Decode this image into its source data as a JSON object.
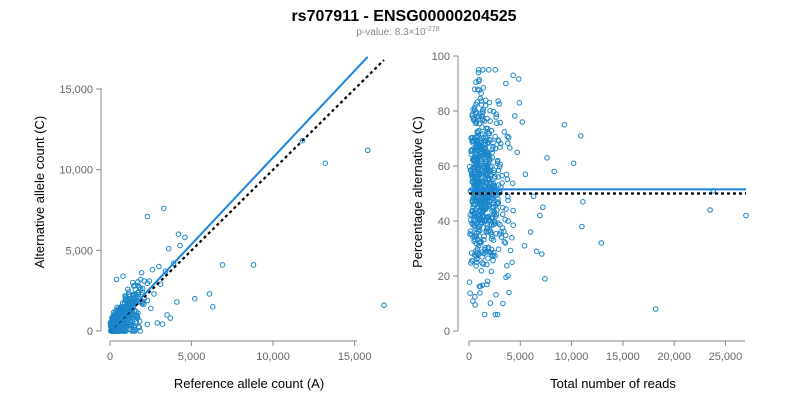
{
  "header": {
    "title": "rs707911 - ENSG00000204525",
    "pvalue_label": "p-value: 8.3",
    "pvalue_times": "×10",
    "pvalue_exp": "-278"
  },
  "colors": {
    "points": "#1b86c9",
    "fit_line": "#1a85e0",
    "reference_line": "#000000"
  },
  "chart_data": [
    {
      "type": "scatter",
      "id": "left",
      "title": "",
      "xlabel": "Reference allele count (A)",
      "ylabel": "Alternative allele count (C)",
      "xlim": [
        0,
        16800
      ],
      "ylim": [
        0,
        16800
      ],
      "xticks": [
        0,
        5000,
        10000,
        15000
      ],
      "xtick_labels": [
        "0",
        "5,000",
        "10,000",
        "15,000"
      ],
      "yticks": [
        0,
        5000,
        10000,
        15000
      ],
      "ytick_labels": [
        "0",
        "5,000",
        "10,000",
        "15,000"
      ],
      "grid": false,
      "points": [
        [
          2300,
          7100
        ],
        [
          3300,
          7600
        ],
        [
          1400,
          3000
        ],
        [
          1800,
          2700
        ],
        [
          2600,
          3800
        ],
        [
          3000,
          4000
        ],
        [
          3600,
          5100
        ],
        [
          3900,
          4200
        ],
        [
          4200,
          6000
        ],
        [
          4300,
          5300
        ],
        [
          4600,
          5800
        ],
        [
          6100,
          2300
        ],
        [
          6300,
          1500
        ],
        [
          6900,
          4100
        ],
        [
          8800,
          4100
        ],
        [
          11800,
          11800
        ],
        [
          13200,
          10400
        ],
        [
          15800,
          11200
        ],
        [
          16800,
          1600
        ],
        [
          3500,
          1000
        ],
        [
          2900,
          500
        ],
        [
          2000,
          2400
        ],
        [
          1600,
          1200
        ],
        [
          2300,
          1900
        ],
        [
          2100,
          3100
        ],
        [
          3100,
          2900
        ],
        [
          2500,
          1400
        ],
        [
          1100,
          2000
        ],
        [
          800,
          3400
        ],
        [
          400,
          3200
        ],
        [
          3400,
          3700
        ],
        [
          5200,
          2000
        ],
        [
          4100,
          1800
        ],
        [
          3700,
          800
        ],
        [
          2700,
          2300
        ]
      ],
      "fit_line": [
        [
          0,
          0
        ],
        [
          15800,
          17000
        ]
      ],
      "reference_line": [
        [
          0,
          0
        ],
        [
          16800,
          16800
        ]
      ]
    },
    {
      "type": "scatter",
      "id": "right",
      "title": "",
      "xlabel": "Total number of reads",
      "ylabel": "Percentage alternative (C)",
      "xlim": [
        0,
        27000
      ],
      "ylim": [
        0,
        100
      ],
      "xticks": [
        0,
        5000,
        10000,
        15000,
        20000,
        25000
      ],
      "xtick_labels": [
        "0",
        "5,000",
        "10,000",
        "15,000",
        "20,000",
        "25,000"
      ],
      "yticks": [
        0,
        20,
        40,
        60,
        80,
        100
      ],
      "ytick_labels": [
        "0",
        "20",
        "40",
        "60",
        "80",
        "100"
      ],
      "grid": false,
      "points": [
        [
          9300,
          75
        ],
        [
          10900,
          71
        ],
        [
          10200,
          61
        ],
        [
          7600,
          63
        ],
        [
          8300,
          58
        ],
        [
          11100,
          47
        ],
        [
          12900,
          32
        ],
        [
          11000,
          38
        ],
        [
          23500,
          44
        ],
        [
          27000,
          42
        ],
        [
          23800,
          51
        ],
        [
          18200,
          8
        ],
        [
          7400,
          19
        ],
        [
          5400,
          31
        ],
        [
          6000,
          36
        ],
        [
          7100,
          28
        ],
        [
          6600,
          29
        ],
        [
          6900,
          42
        ],
        [
          7200,
          45
        ],
        [
          6300,
          49
        ],
        [
          5500,
          57
        ],
        [
          4300,
          93
        ],
        [
          3600,
          90
        ],
        [
          4900,
          83
        ],
        [
          5200,
          76
        ],
        [
          4700,
          65
        ],
        [
          3900,
          14
        ],
        [
          4200,
          25
        ],
        [
          3300,
          10
        ],
        [
          2800,
          6
        ]
      ],
      "fit_line": [
        [
          0,
          51.5
        ],
        [
          27000,
          51.5
        ]
      ],
      "reference_line": [
        [
          0,
          50
        ],
        [
          27000,
          50
        ]
      ]
    }
  ]
}
